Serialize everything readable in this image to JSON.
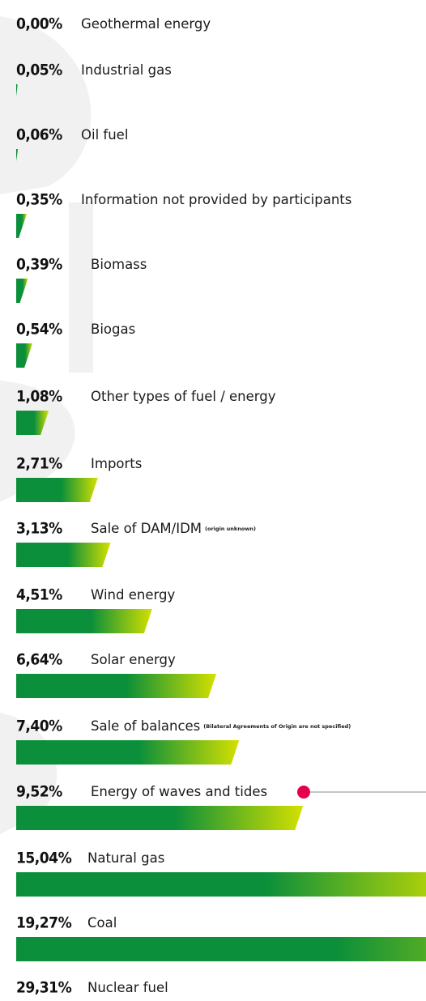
{
  "chart_data": {
    "type": "bar",
    "orientation": "horizontal",
    "categories": [
      "Geothermal energy",
      "Industrial gas",
      "Oil fuel",
      "Information not provided by participants",
      "Biomass",
      "Biogas",
      "Other types of fuel / energy",
      "Imports",
      "Sale of DAM/IDM",
      "Wind energy",
      "Solar energy",
      "Sale of balances",
      "Energy of waves and tides",
      "Natural gas",
      "Coal",
      "Nuclear fuel"
    ],
    "category_notes": [
      null,
      null,
      null,
      null,
      null,
      null,
      null,
      null,
      "(origin unknown)",
      null,
      null,
      "(Bilateral Agreements of Origin are not specified)",
      null,
      null,
      null,
      null
    ],
    "values": [
      0.0,
      0.05,
      0.06,
      0.35,
      0.39,
      0.54,
      1.08,
      2.71,
      3.13,
      4.51,
      6.64,
      7.4,
      9.52,
      15.04,
      19.27,
      29.31
    ],
    "value_labels": [
      "0,00%",
      "0,05%",
      "0,06%",
      "0,35%",
      "0,39%",
      "0,54%",
      "1,08%",
      "2,71%",
      "3,13%",
      "4,51%",
      "6,64%",
      "7,40%",
      "9,52%",
      "15,04%",
      "19,27%",
      "29,31%"
    ],
    "xlim": [
      0,
      13.6
    ],
    "color_start": "#0b8f3a",
    "color_end": "#d4e000"
  }
}
